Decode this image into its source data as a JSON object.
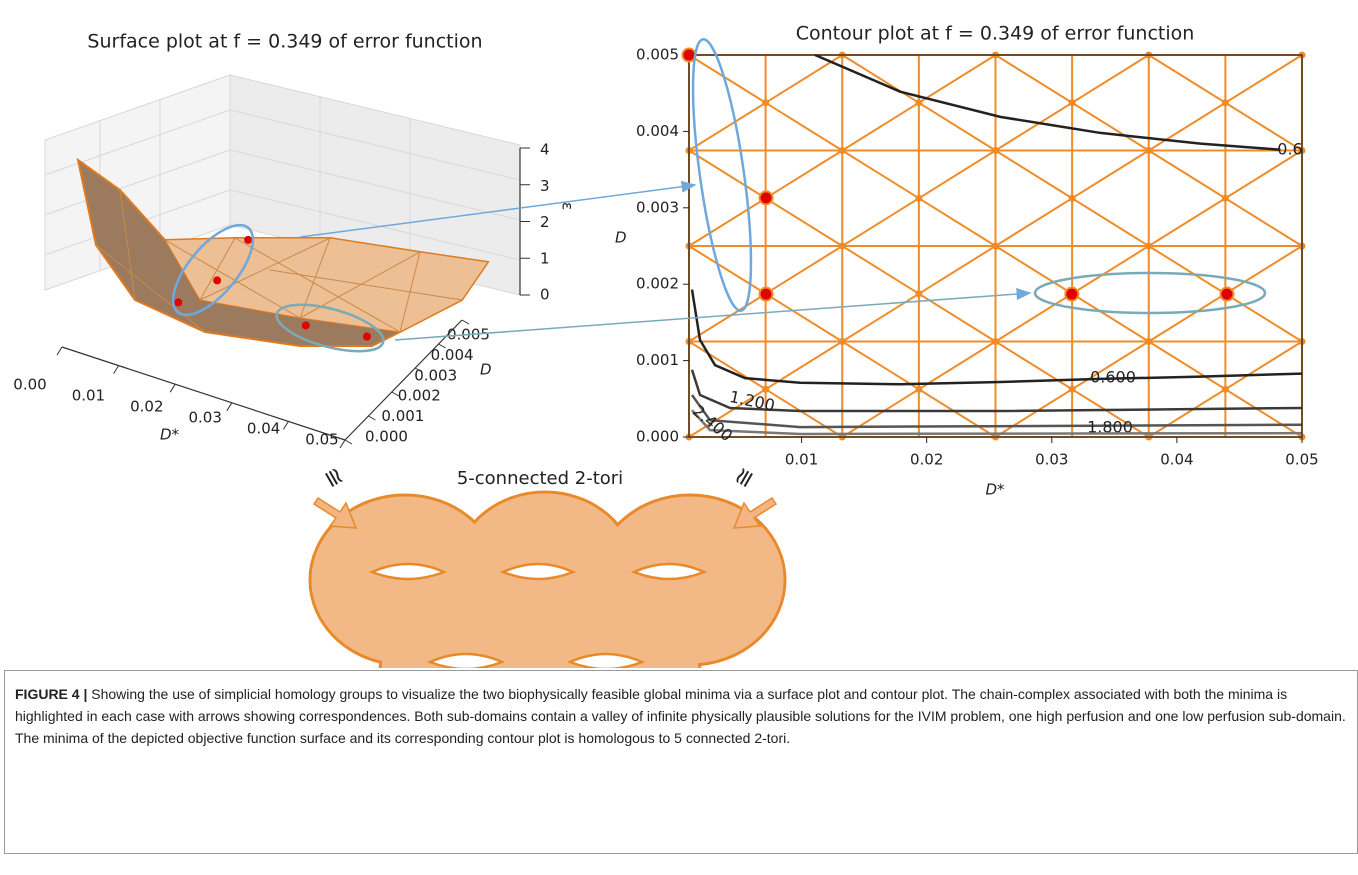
{
  "chart_data": [
    {
      "type": "surface3d",
      "title": "Surface plot at f = 0.349 of error function",
      "x_label": "D*",
      "y_label": "D",
      "z_label": "ε",
      "xlim": [
        0,
        0.05
      ],
      "xticks": [
        {
          "value": 0,
          "label": "0.00"
        },
        0.01,
        0.02,
        0.03,
        0.04,
        0.05
      ],
      "ylim": [
        0,
        0.005
      ],
      "yticks": [
        {
          "value": 0,
          "label": "0.000"
        },
        0.001,
        0.002,
        0.003,
        0.004,
        0.005
      ],
      "zlim": [
        0,
        4
      ],
      "zticks": [
        0,
        1,
        2,
        3,
        4
      ],
      "points": {
        "x": [
          0.001,
          0.007,
          0.007,
          0.032,
          0.044
        ],
        "y": [
          0.005,
          0.0031,
          0.0019,
          0.0019,
          0.0019
        ],
        "color": "#e00000"
      },
      "surface_color": "#f0a060"
    },
    {
      "type": "contour",
      "title": "Contour plot at f = 0.349 of error function",
      "x_label": "D*",
      "y_label": "D",
      "xlim": [
        0.001,
        0.05
      ],
      "xticks": [
        0.01,
        0.02,
        0.03,
        0.04,
        0.05
      ],
      "ylim": [
        0,
        0.005
      ],
      "yticks": [
        {
          "value": 0,
          "label": "0.000"
        },
        {
          "value": 0.001,
          "label": "0.001"
        },
        {
          "value": 0.002,
          "label": "0.002"
        },
        {
          "value": 0.003,
          "label": "0.003"
        },
        {
          "value": 0.004,
          "label": "0.004"
        },
        {
          "value": 0.005,
          "label": "0.005"
        }
      ],
      "mesh_color": "#f08c28",
      "contours": [
        {
          "level": 0.6,
          "color": "#222222",
          "x": [
            0.01108,
            0.01788,
            0.02588,
            0.03388,
            0.04188,
            0.04828
          ],
          "y": [
            0.005,
            0.00452,
            0.00419,
            0.00398,
            0.00384,
            0.00376
          ]
        },
        {
          "level": 0.6,
          "value_label": "0.600",
          "color": "#222222",
          "x": [
            0.00124,
            0.00188,
            0.00308,
            0.00548,
            0.00988,
            0.01788,
            0.02588,
            0.03388,
            0.04188,
            0.05
          ],
          "y": [
            0.00193,
            0.00127,
            0.00094,
            0.00077,
            0.00071,
            0.00069,
            0.00072,
            0.00076,
            0.00079,
            0.00083
          ]
        },
        {
          "level": 1.2,
          "value_label": "1.200",
          "color": "#3a3a3a",
          "x": [
            0.00124,
            0.00188,
            0.00428,
            0.00988,
            0.02588,
            0.05
          ],
          "y": [
            0.00088,
            0.00055,
            0.00038,
            0.00034,
            0.00034,
            0.00038
          ]
        },
        {
          "level": 1.8,
          "value_label": "1.800",
          "color": "#555555",
          "x": [
            0.00124,
            0.00268,
            0.00988,
            0.05
          ],
          "y": [
            0.00055,
            0.00022,
            0.00013,
            0.00016
          ]
        },
        {
          "level": 2.4,
          "value_label": "2.400",
          "color": "#777777",
          "x": [
            0.00124,
            0.00268,
            0.00988,
            0.05
          ],
          "y": [
            0.00035,
            9e-05,
            4e-05,
            5e-05
          ]
        }
      ],
      "points": {
        "x": [
          0.001,
          0.00716,
          0.00716,
          0.0316,
          0.044
        ],
        "y": [
          0.005,
          0.00313,
          0.00187,
          0.00187,
          0.00187
        ],
        "color": "#e00000"
      }
    }
  ],
  "diagram": {
    "label": "5-connected 2-tori",
    "left_symbol": "≅",
    "right_symbol": "≅"
  },
  "caption": {
    "label": "FIGURE 4 |",
    "text": "Showing the use of simplicial homology groups to visualize the two biophysically feasible global minima via a surface plot and contour plot. The chain-complex associated with both the minima is highlighted in each case with arrows showing correspondences. Both sub-domains contain a valley of infinite physically plausible solutions for the IVIM problem, one high perfusion and one low perfusion sub-domain. The minima of the depicted objective function surface and its corresponding contour plot is homologous to 5 connected 2-tori."
  }
}
